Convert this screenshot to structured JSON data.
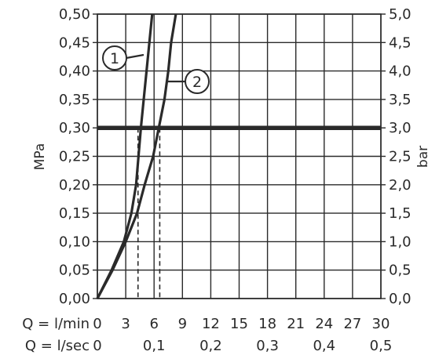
{
  "chart_data": {
    "type": "line",
    "title": "",
    "y_left": {
      "label": "MPa",
      "ticks": [
        "0,00",
        "0,05",
        "0,10",
        "0,15",
        "0,20",
        "0,25",
        "0,30",
        "0,35",
        "0,40",
        "0,45",
        "0,50"
      ],
      "range": [
        0,
        0.5
      ]
    },
    "y_right": {
      "label": "bar",
      "ticks": [
        "0,0",
        "0,5",
        "1,0",
        "1,5",
        "2,0",
        "2,5",
        "3,0",
        "3,5",
        "4,0",
        "4,5",
        "5,0"
      ],
      "range": [
        0,
        5
      ]
    },
    "x_primary": {
      "label": "Q = l/min",
      "ticks": [
        "0",
        "3",
        "6",
        "9",
        "12",
        "15",
        "18",
        "21",
        "24",
        "27",
        "30"
      ],
      "range": [
        0,
        30
      ]
    },
    "x_secondary": {
      "label": "Q = l/sec",
      "ticks": [
        "0",
        "0,1",
        "0,2",
        "0,3",
        "0,4",
        "0,5"
      ],
      "range": [
        0,
        0.5
      ]
    },
    "grid": true,
    "reference_line": {
      "y": 0.3
    },
    "series": [
      {
        "name": "1",
        "points": [
          [
            0,
            0
          ],
          [
            1.5,
            0.05
          ],
          [
            2.8,
            0.1
          ],
          [
            3.6,
            0.15
          ],
          [
            4.1,
            0.2
          ],
          [
            4.6,
            0.3
          ],
          [
            5.2,
            0.4
          ],
          [
            5.5,
            0.45
          ],
          [
            5.8,
            0.5
          ]
        ],
        "drop_x": 4.3
      },
      {
        "name": "2",
        "points": [
          [
            0,
            0
          ],
          [
            1.6,
            0.05
          ],
          [
            3.0,
            0.1
          ],
          [
            4.2,
            0.15
          ],
          [
            5.0,
            0.2
          ],
          [
            5.9,
            0.25
          ],
          [
            6.5,
            0.3
          ],
          [
            7.1,
            0.35
          ],
          [
            7.5,
            0.4
          ],
          [
            7.8,
            0.45
          ],
          [
            8.3,
            0.5
          ]
        ],
        "drop_x": 6.6
      }
    ]
  }
}
